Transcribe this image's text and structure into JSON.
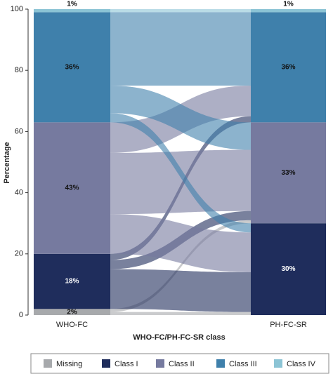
{
  "chart_data": {
    "type": "alluvial",
    "xlabel": "WHO-FC/PH-FC-SR class",
    "ylabel": "Percentage",
    "categories": [
      "WHO-FC",
      "PH-FC-SR"
    ],
    "ylim": [
      0,
      100
    ],
    "yticks": [
      0,
      20,
      40,
      60,
      80,
      100
    ],
    "series": [
      {
        "name": "Missing",
        "color": "#a7a9ac",
        "values": [
          2,
          0
        ],
        "value_labels": [
          "2%",
          null
        ]
      },
      {
        "name": "Class I",
        "color": "#1f2d5c",
        "values": [
          18,
          30
        ],
        "value_labels": [
          "18%",
          "30%"
        ]
      },
      {
        "name": "Class II",
        "color": "#767a9f",
        "values": [
          43,
          33
        ],
        "value_labels": [
          "43%",
          "33%"
        ]
      },
      {
        "name": "Class III",
        "color": "#3f80ab",
        "values": [
          36,
          36
        ],
        "value_labels": [
          "36%",
          "36%"
        ]
      },
      {
        "name": "Class IV",
        "color": "#8cc4d5",
        "values": [
          1,
          1
        ],
        "value_labels": [
          "1%",
          "1%"
        ]
      }
    ],
    "flows": [
      {
        "from": "Missing",
        "to": "Class I",
        "value": 1
      },
      {
        "from": "Missing",
        "to": "Class II",
        "value": 1
      },
      {
        "from": "Class I",
        "to": "Class I",
        "value": 13
      },
      {
        "from": "Class I",
        "to": "Class II",
        "value": 3
      },
      {
        "from": "Class I",
        "to": "Class III",
        "value": 2
      },
      {
        "from": "Class II",
        "to": "Class I",
        "value": 13
      },
      {
        "from": "Class II",
        "to": "Class II",
        "value": 20
      },
      {
        "from": "Class II",
        "to": "Class III",
        "value": 10
      },
      {
        "from": "Class III",
        "to": "Class I",
        "value": 3
      },
      {
        "from": "Class III",
        "to": "Class II",
        "value": 9
      },
      {
        "from": "Class III",
        "to": "Class III",
        "value": 24
      },
      {
        "from": "Class IV",
        "to": "Class IV",
        "value": 1
      }
    ]
  }
}
